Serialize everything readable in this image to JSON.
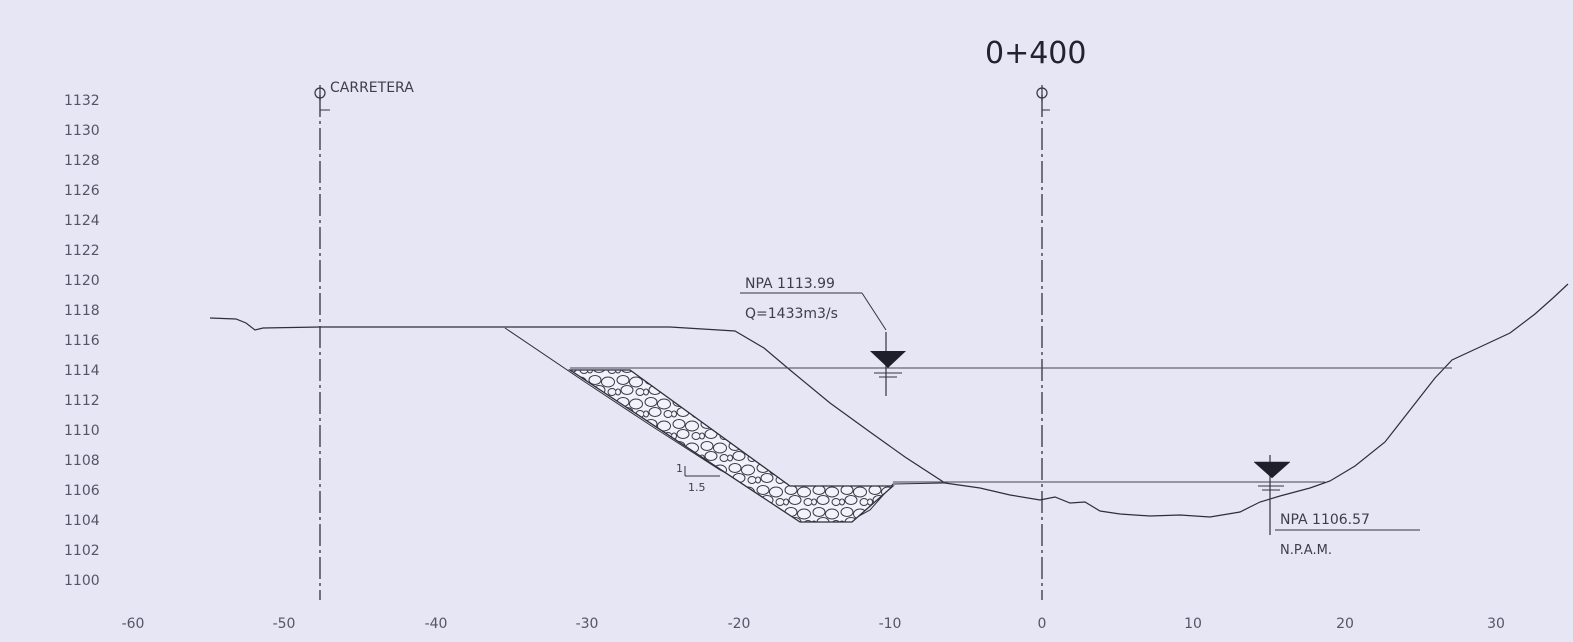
{
  "drawing": {
    "station": "0+400",
    "centerline_label": "CARRETERA",
    "y_ticks": [
      "1132",
      "1130",
      "1128",
      "1126",
      "1124",
      "1122",
      "1120",
      "1118",
      "1116",
      "1114",
      "1112",
      "1110",
      "1108",
      "1106",
      "1104",
      "1102",
      "1100"
    ],
    "x_ticks": [
      "-60",
      "-50",
      "-40",
      "-30",
      "-20",
      "-10",
      "0",
      "10",
      "20",
      "30"
    ],
    "high_water": {
      "label": "NPA 1113.99",
      "flow": "Q=1433m3/s"
    },
    "low_water": {
      "label": "NPA 1106.57",
      "note": "N.P.A.M."
    },
    "slope": {
      "rise": "1",
      "run": "1.5"
    }
  }
}
